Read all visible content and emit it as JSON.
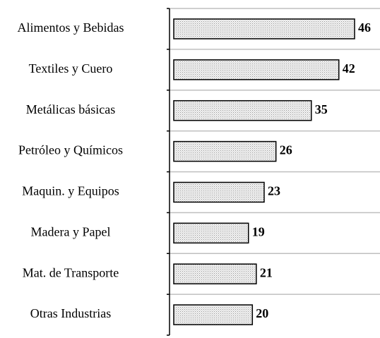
{
  "chart_data": {
    "type": "barh",
    "categories": [
      "Alimentos y Bebidas",
      "Textiles y Cuero",
      "Metálicas básicas",
      "Petróleo y Químicos",
      "Maquin. y Equipos",
      "Madera y Papel",
      "Mat. de Transporte",
      "Otras Industrias"
    ],
    "values": [
      46,
      42,
      35,
      26,
      23,
      19,
      21,
      20
    ],
    "color": "#d9d9d9",
    "grid": true
  }
}
